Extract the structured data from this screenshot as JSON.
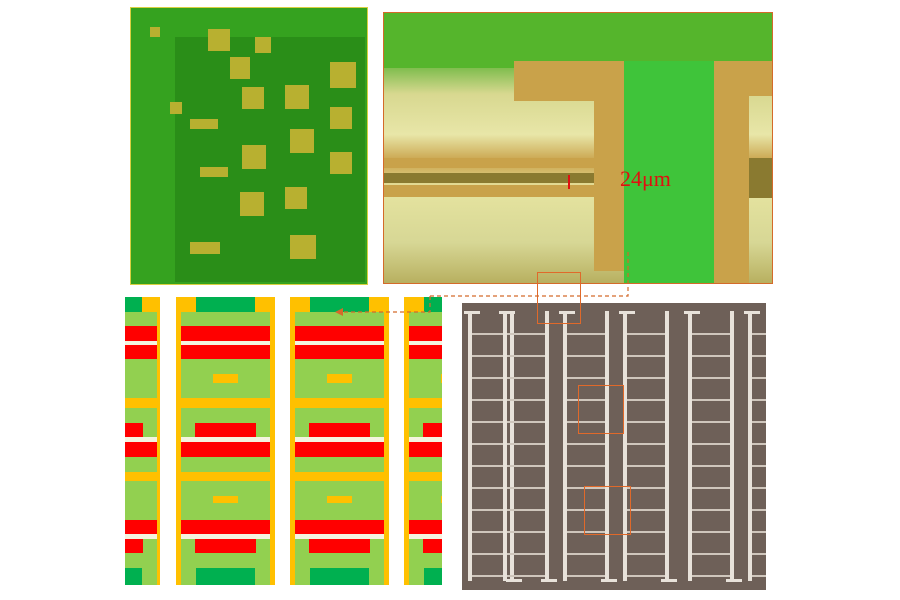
{
  "figure": {
    "measurement_label": "24μm",
    "colors": {
      "pcb_green": "#2f9a1c",
      "copper": "#c9a24a",
      "diagram_yellow": "#ffc000",
      "diagram_light_green": "#92d050",
      "diagram_dark_green": "#00b050",
      "diagram_red": "#ff0000",
      "highlight_orange": "#e0692a",
      "sem_background": "#6e6058"
    }
  }
}
